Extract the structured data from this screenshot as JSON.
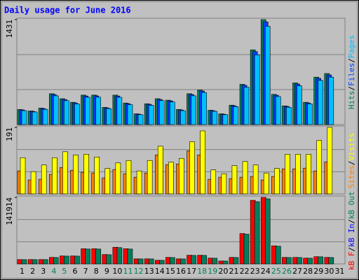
{
  "legend_separator": "/",
  "chart_data": [
    {
      "type": "bar",
      "title": "Daily usage for June 2016",
      "categories": [
        "1",
        "2",
        "3",
        "4",
        "5",
        "6",
        "7",
        "8",
        "9",
        "10",
        "11",
        "12",
        "13",
        "14",
        "15",
        "16",
        "17",
        "18",
        "19",
        "20",
        "21",
        "22",
        "23",
        "24",
        "25",
        "26",
        "27",
        "28",
        "29",
        "30",
        "31"
      ],
      "category_colors": [
        "#000000",
        "#000000",
        "#000000",
        "#00805c",
        "#00805c",
        "#000000",
        "#000000",
        "#000000",
        "#000000",
        "#000000",
        "#00805c",
        "#00805c",
        "#000000",
        "#000000",
        "#000000",
        "#000000",
        "#000000",
        "#00805c",
        "#00805c",
        "#000000",
        "#000000",
        "#000000",
        "#000000",
        "#000000",
        "#00805c",
        "#00805c",
        "#000000",
        "#000000",
        "#000000",
        "#000000",
        "#000000"
      ],
      "ylim": [
        0,
        1431
      ],
      "yticks": [
        1431
      ],
      "series": [
        {
          "name": "Hits",
          "color": "#00805c",
          "values": [
            206,
            186,
            225,
            421,
            353,
            304,
            402,
            402,
            235,
            402,
            294,
            147,
            284,
            353,
            333,
            206,
            421,
            470,
            196,
            147,
            265,
            549,
            1019,
            1431,
            412,
            255,
            568,
            304,
            647,
            696,
            null
          ]
        },
        {
          "name": "Files",
          "color": "#0040ff",
          "values": [
            200,
            180,
            218,
            410,
            342,
            295,
            390,
            392,
            228,
            390,
            285,
            142,
            276,
            343,
            323,
            200,
            410,
            458,
            190,
            142,
            257,
            535,
            995,
            1400,
            400,
            248,
            553,
            295,
            630,
            677,
            null
          ]
        },
        {
          "name": "Pages",
          "color": "#00c0ff",
          "values": [
            190,
            172,
            208,
            392,
            326,
            282,
            373,
            374,
            218,
            372,
            272,
            135,
            263,
            327,
            308,
            190,
            392,
            437,
            181,
            135,
            245,
            510,
            950,
            1340,
            382,
            236,
            528,
            282,
            602,
            647,
            null
          ]
        }
      ]
    },
    {
      "type": "bar",
      "ylim": [
        0,
        191
      ],
      "yticks": [
        191
      ],
      "series": [
        {
          "name": "Sites",
          "color": "#ff8000",
          "values": [
            66,
            40,
            42,
            56,
            76,
            68,
            62,
            60,
            46,
            70,
            58,
            48,
            60,
            112,
            84,
            86,
            124,
            112,
            42,
            48,
            44,
            48,
            50,
            40,
            50,
            72,
            72,
            74,
            66,
            92,
            null
          ]
        },
        {
          "name": "Visits",
          "color": "#ffff00",
          "values": [
            104,
            64,
            83,
            104,
            121,
            112,
            114,
            106,
            73,
            89,
            96,
            66,
            96,
            137,
            91,
            102,
            150,
            181,
            69,
            58,
            81,
            93,
            83,
            60,
            73,
            114,
            114,
            114,
            154,
            191,
            null
          ]
        }
      ]
    },
    {
      "type": "bar",
      "ylim": [
        0,
        141914
      ],
      "yticks": [
        141914
      ],
      "series": [
        {
          "name": "kB F",
          "color": "#ff0000",
          "values": [
            9255,
            9300,
            9300,
            13880,
            16965,
            16965,
            32390,
            32390,
            20050,
            35478,
            32390,
            10797,
            10797,
            7712,
            13880,
            10797,
            18508,
            18508,
            12338,
            6170,
            13880,
            64785,
            135743,
            141914,
            38563,
            13880,
            13880,
            12338,
            15423,
            13880,
            null
          ]
        },
        {
          "name": "kB In",
          "color": "#0000ff",
          "values": [
            0,
            0,
            0,
            0,
            0,
            0,
            0,
            0,
            0,
            0,
            0,
            0,
            0,
            0,
            0,
            0,
            0,
            0,
            0,
            0,
            0,
            0,
            0,
            0,
            0,
            0,
            0,
            0,
            0,
            0,
            null
          ]
        },
        {
          "name": "kB Out",
          "color": "#00805c",
          "values": [
            9100,
            9150,
            9150,
            13600,
            16600,
            16600,
            31700,
            31700,
            19600,
            34700,
            31700,
            10600,
            10600,
            7550,
            13600,
            10600,
            18100,
            18100,
            12100,
            6050,
            13600,
            63400,
            132800,
            138900,
            37700,
            13600,
            13600,
            12100,
            15100,
            13600,
            null
          ]
        }
      ]
    }
  ]
}
